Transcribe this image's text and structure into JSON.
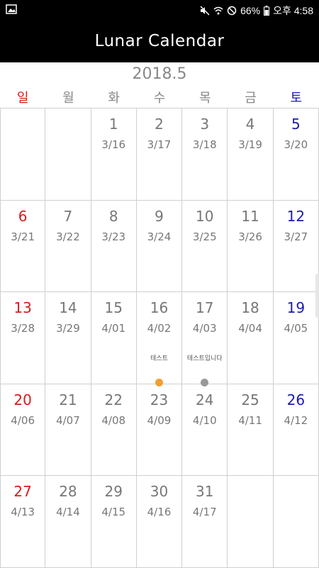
{
  "status_bar": {
    "battery": "66%",
    "time": "오후 4:58"
  },
  "app": {
    "title": "Lunar Calendar"
  },
  "calendar": {
    "month_label": "2018.5",
    "weekdays": [
      "일",
      "월",
      "화",
      "수",
      "목",
      "금",
      "토"
    ],
    "weeks": [
      [
        {
          "day": "",
          "lunar": ""
        },
        {
          "day": "",
          "lunar": ""
        },
        {
          "day": "1",
          "lunar": "3/16"
        },
        {
          "day": "2",
          "lunar": "3/17"
        },
        {
          "day": "3",
          "lunar": "3/18"
        },
        {
          "day": "4",
          "lunar": "3/19"
        },
        {
          "day": "5",
          "lunar": "3/20"
        }
      ],
      [
        {
          "day": "6",
          "lunar": "3/21"
        },
        {
          "day": "7",
          "lunar": "3/22"
        },
        {
          "day": "8",
          "lunar": "3/23"
        },
        {
          "day": "9",
          "lunar": "3/24"
        },
        {
          "day": "10",
          "lunar": "3/25"
        },
        {
          "day": "11",
          "lunar": "3/26"
        },
        {
          "day": "12",
          "lunar": "3/27"
        }
      ],
      [
        {
          "day": "13",
          "lunar": "3/28"
        },
        {
          "day": "14",
          "lunar": "3/29"
        },
        {
          "day": "15",
          "lunar": "4/01"
        },
        {
          "day": "16",
          "lunar": "4/02",
          "event": "테스트",
          "dot_color": "#f0a030"
        },
        {
          "day": "17",
          "lunar": "4/03",
          "event": "테스트입니다",
          "dot_color": "#999999"
        },
        {
          "day": "18",
          "lunar": "4/04"
        },
        {
          "day": "19",
          "lunar": "4/05"
        }
      ],
      [
        {
          "day": "20",
          "lunar": "4/06"
        },
        {
          "day": "21",
          "lunar": "4/07"
        },
        {
          "day": "22",
          "lunar": "4/08"
        },
        {
          "day": "23",
          "lunar": "4/09"
        },
        {
          "day": "24",
          "lunar": "4/10"
        },
        {
          "day": "25",
          "lunar": "4/11"
        },
        {
          "day": "26",
          "lunar": "4/12"
        }
      ],
      [
        {
          "day": "27",
          "lunar": "4/13"
        },
        {
          "day": "28",
          "lunar": "4/14"
        },
        {
          "day": "29",
          "lunar": "4/15"
        },
        {
          "day": "30",
          "lunar": "4/16"
        },
        {
          "day": "31",
          "lunar": "4/17"
        },
        {
          "day": "",
          "lunar": ""
        },
        {
          "day": "",
          "lunar": ""
        }
      ]
    ]
  },
  "colors": {
    "sunday": "#d81b1b",
    "saturday": "#1a1ab0",
    "default_text": "#777777"
  }
}
